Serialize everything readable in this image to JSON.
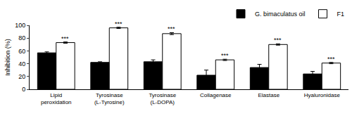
{
  "chart_data": {
    "type": "bar",
    "y_label": "Inhibition (%)",
    "categories": [
      "Lipid peroxidation",
      "Tyrosinase (L-Tyrosine)",
      "Tyrosinase (L-DOPA)",
      "Collagenase",
      "Elastase",
      "Hyaluronidase"
    ],
    "series": [
      {
        "name": "G. bimaculatus oil",
        "color": "#000000",
        "values": [
          57,
          42,
          43,
          22,
          34,
          24
        ],
        "errors": [
          1.5,
          1,
          3,
          8,
          5,
          4
        ]
      },
      {
        "name": "F1",
        "color": "#ffffff",
        "values": [
          73,
          96,
          87,
          46,
          70,
          41
        ],
        "errors": [
          1,
          1,
          1.5,
          1,
          1,
          1
        ]
      }
    ],
    "annotations": [
      {
        "category": "Lipid peroxidation",
        "series": "F1",
        "text": "***"
      },
      {
        "category": "Tyrosinase (L-Tyrosine)",
        "series": "F1",
        "text": "***"
      },
      {
        "category": "Tyrosinase (L-DOPA)",
        "series": "F1",
        "text": "***"
      },
      {
        "category": "Collagenase",
        "series": "F1",
        "text": "***"
      },
      {
        "category": "Elastase",
        "series": "F1",
        "text": "***"
      },
      {
        "category": "Hyaluronidase",
        "series": "F1",
        "text": "***"
      }
    ],
    "ylim": [
      0,
      100
    ],
    "yticks": [
      0,
      20,
      40,
      60,
      80,
      100
    ],
    "grid": false,
    "legend": "top-right"
  }
}
